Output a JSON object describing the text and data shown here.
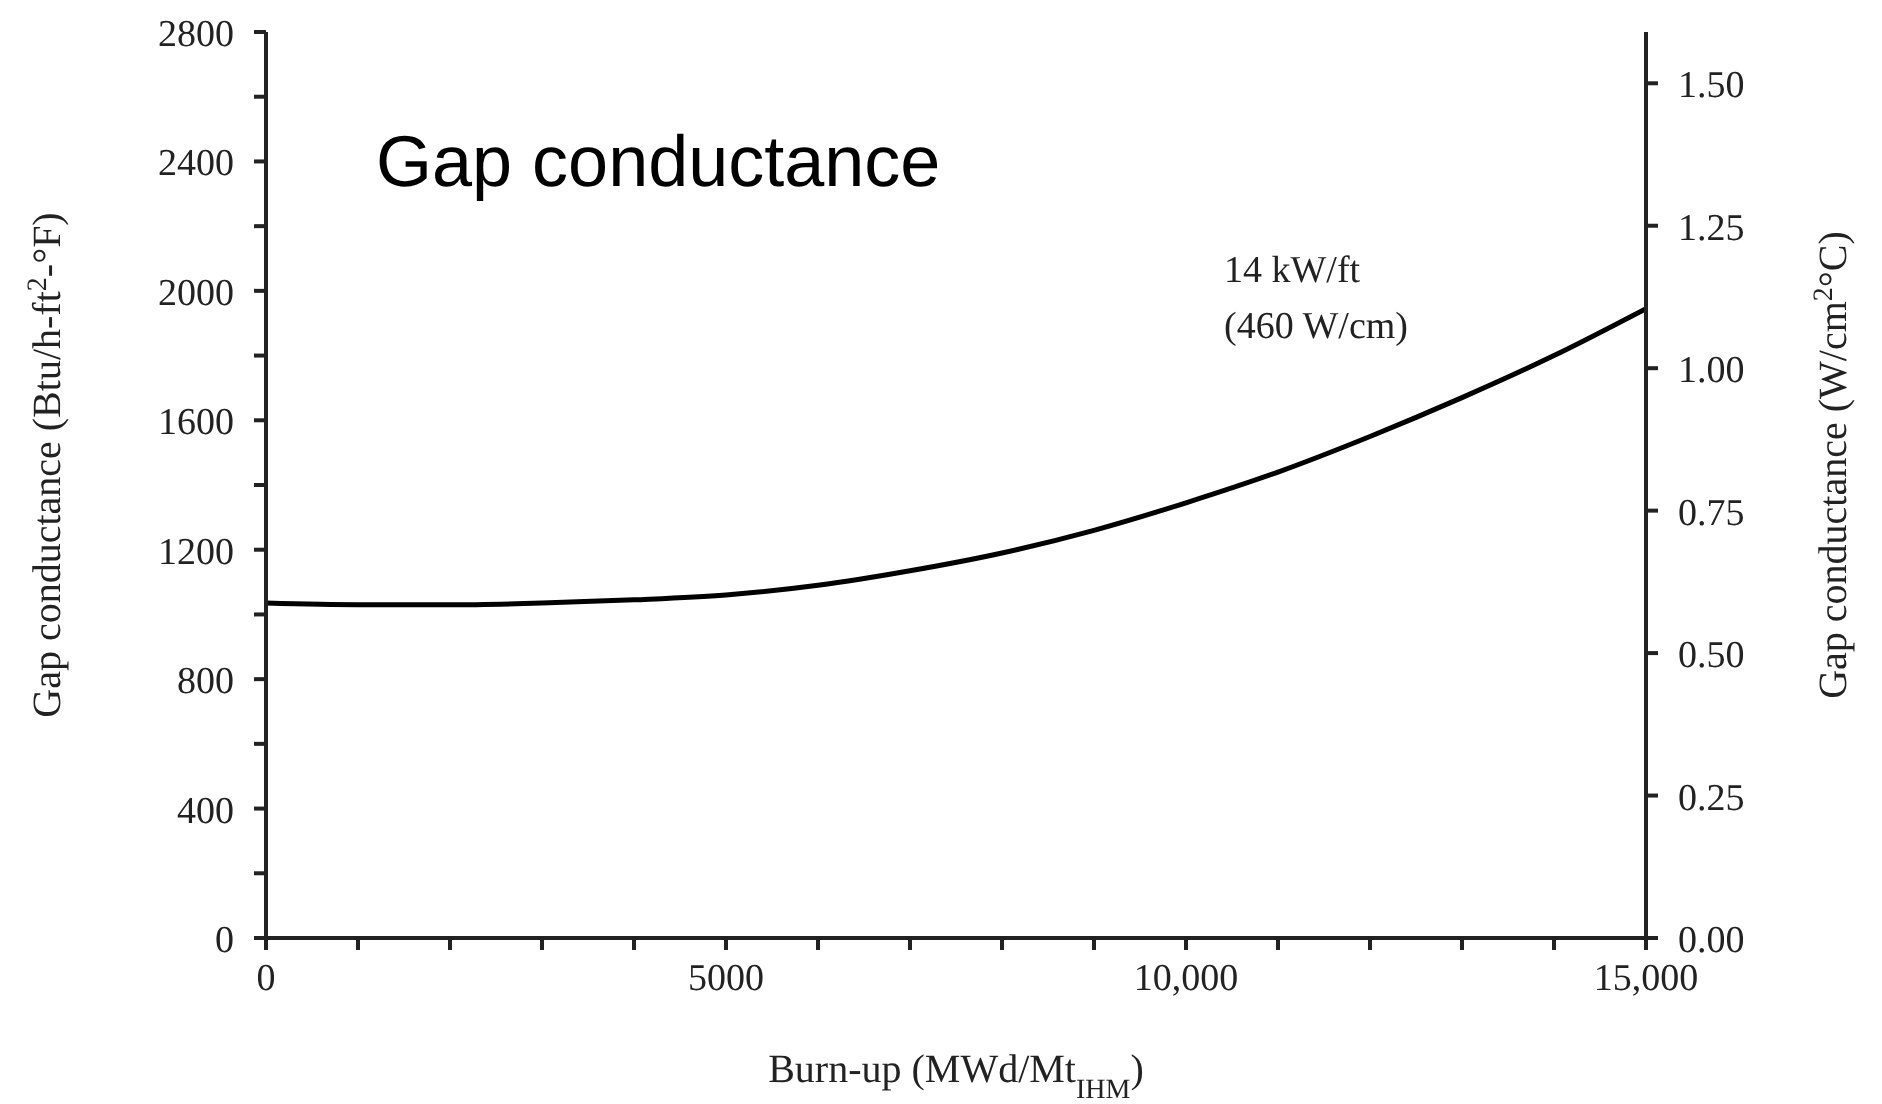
{
  "chart_data": {
    "type": "line",
    "title": "Gap conductance",
    "xlabel": "Burn-up (MWd/Mt$_{IHM}$)",
    "ylabel": "Gap conductance (Btu/h-ft$^{2}$-°F)",
    "y2label": "Gap conductance (W/cm$^{2}$°C)",
    "annotations": [
      "14 kW/ft\n(460 W/cm)"
    ],
    "x": [
      0,
      1000,
      2000,
      3000,
      4000,
      5000,
      6000,
      7000,
      8000,
      9000,
      10000,
      11000,
      12000,
      13000,
      14000,
      15000
    ],
    "series": [
      {
        "color": "#000000",
        "values": [
          1035,
          1030,
          1030,
          1035,
          1045,
          1060,
          1090,
          1135,
          1190,
          1260,
          1345,
          1440,
          1550,
          1670,
          1800,
          1945
        ]
      }
    ],
    "xlim": [
      0,
      15000
    ],
    "xticks": [
      0,
      {
        "value": 1000,
        "label": null
      },
      {
        "value": 2000,
        "label": null
      },
      {
        "value": 3000,
        "label": null
      },
      {
        "value": 4000,
        "label": null
      },
      5000,
      {
        "value": 6000,
        "label": null
      },
      {
        "value": 7000,
        "label": null
      },
      {
        "value": 8000,
        "label": null
      },
      {
        "value": 9000,
        "label": null
      },
      {
        "value": 10000,
        "label": "10,000"
      },
      {
        "value": 11000,
        "label": null
      },
      {
        "value": 12000,
        "label": null
      },
      {
        "value": 13000,
        "label": null
      },
      {
        "value": 14000,
        "label": null
      },
      {
        "value": 15000,
        "label": "15,000"
      }
    ],
    "ylim": [
      0,
      2800
    ],
    "yticks": [
      0,
      {
        "value": 200,
        "label": null
      },
      400,
      {
        "value": 600,
        "label": null
      },
      800,
      {
        "value": 1000,
        "label": null
      },
      1200,
      {
        "value": 1400,
        "label": null
      },
      1600,
      {
        "value": 1800,
        "label": null
      },
      2000,
      {
        "value": 2200,
        "label": null
      },
      2400,
      {
        "value": 2600,
        "label": null
      },
      2800
    ],
    "y2lim": [
      0,
      1.59
    ],
    "y2ticks": [
      {
        "value": 0,
        "label": "0.00"
      },
      {
        "value": 0.25,
        "label": "0.25"
      },
      {
        "value": 0.5,
        "label": "0.50"
      },
      {
        "value": 0.75,
        "label": "0.75"
      },
      {
        "value": 1,
        "label": "1.00"
      },
      {
        "value": 1.25,
        "label": "1.25"
      },
      {
        "value": 1.5,
        "label": "1.50"
      }
    ],
    "grid": false,
    "legend": false,
    "marker": "none",
    "line_style": "solid"
  }
}
